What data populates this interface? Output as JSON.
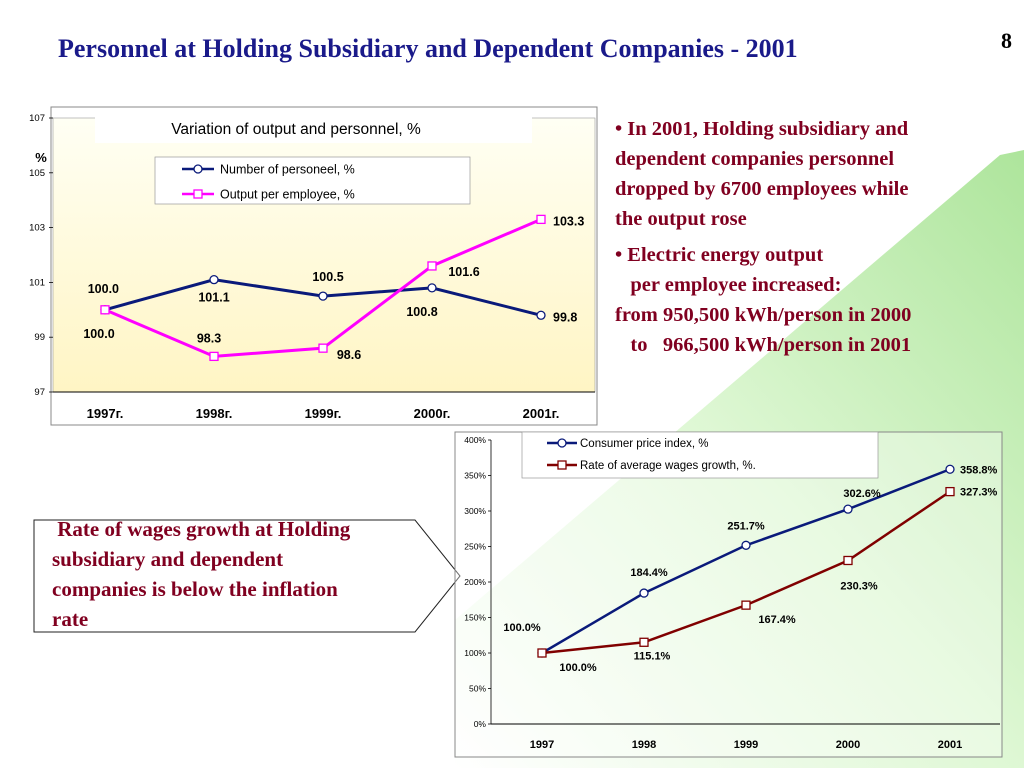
{
  "slide": {
    "title": "Personnel at Holding Subsidiary and Dependent Companies - 2001",
    "number": "8"
  },
  "bullets": [
    {
      "lines": [
        "• In 2001, Holding subsidiary and",
        "dependent companies personnel",
        "dropped by 6700 employees while",
        "the output rose"
      ]
    },
    {
      "lines": [
        "• Electric energy output",
        "   per employee increased:",
        "from 950,500 kWh/person in 2000",
        "   to   966,500 kWh/person in 2001"
      ]
    }
  ],
  "callout": {
    "lines": [
      " Rate of wages growth at Holding",
      "subsidiary and dependent",
      "companies is below the inflation",
      "rate"
    ]
  },
  "colors": {
    "title": "#1a1a8a",
    "bullet_text": "#800020",
    "navy_series": "#0a1a7a",
    "magenta_series": "#ff00ff",
    "darkred_series": "#800000",
    "plot_area_top": "#fffff0",
    "plot_area_bottom": "#fff6c8",
    "green_band": "#c8f0b0"
  },
  "chart_data": [
    {
      "type": "line",
      "title": "Variation of output and personnel, %",
      "ylabel": "%",
      "xlabel": "",
      "categories": [
        "1997г.",
        "1998г.",
        "1999г.",
        "2000г.",
        "2001г."
      ],
      "ylim": [
        97,
        107
      ],
      "yticks": [
        "97",
        "99",
        "101",
        "103",
        "105",
        "107"
      ],
      "grid": false,
      "legend": "top",
      "series": [
        {
          "name": "Number of personeel, %",
          "values": [
            100.0,
            101.1,
            100.5,
            100.8,
            99.8
          ],
          "labels": [
            "100.0",
            "101.1",
            "100.5",
            "100.8",
            "99.8"
          ],
          "color": "#0a1a7a",
          "marker": "circle"
        },
        {
          "name": "Output per employee, %",
          "values": [
            100.0,
            98.3,
            98.6,
            101.6,
            103.3
          ],
          "labels": [
            "100.0",
            "98.3",
            "98.6",
            "101.6",
            "103.3"
          ],
          "color": "#ff00ff",
          "marker": "square"
        }
      ]
    },
    {
      "type": "line",
      "title": "",
      "xlabel": "",
      "ylabel": "",
      "categories": [
        "1997",
        "1998",
        "1999",
        "2000",
        "2001"
      ],
      "ylim": [
        0,
        400
      ],
      "yticks": [
        "0%",
        "50%",
        "100%",
        "150%",
        "200%",
        "250%",
        "300%",
        "350%",
        "400%"
      ],
      "grid": false,
      "legend": "top",
      "series": [
        {
          "name": "Consumer price index, %",
          "values": [
            100.0,
            184.4,
            251.7,
            302.6,
            358.8
          ],
          "labels": [
            "100.0%",
            "184.4%",
            "251.7%",
            "302.6%",
            "358.8%"
          ],
          "color": "#0a1a7a",
          "marker": "circle"
        },
        {
          "name": "Rate of average wages growth, %.",
          "values": [
            100.0,
            115.1,
            167.4,
            230.3,
            327.3
          ],
          "labels": [
            "100.0%",
            "115.1%",
            "167.4%",
            "230.3%",
            "327.3%"
          ],
          "color": "#800000",
          "marker": "square"
        }
      ]
    }
  ]
}
